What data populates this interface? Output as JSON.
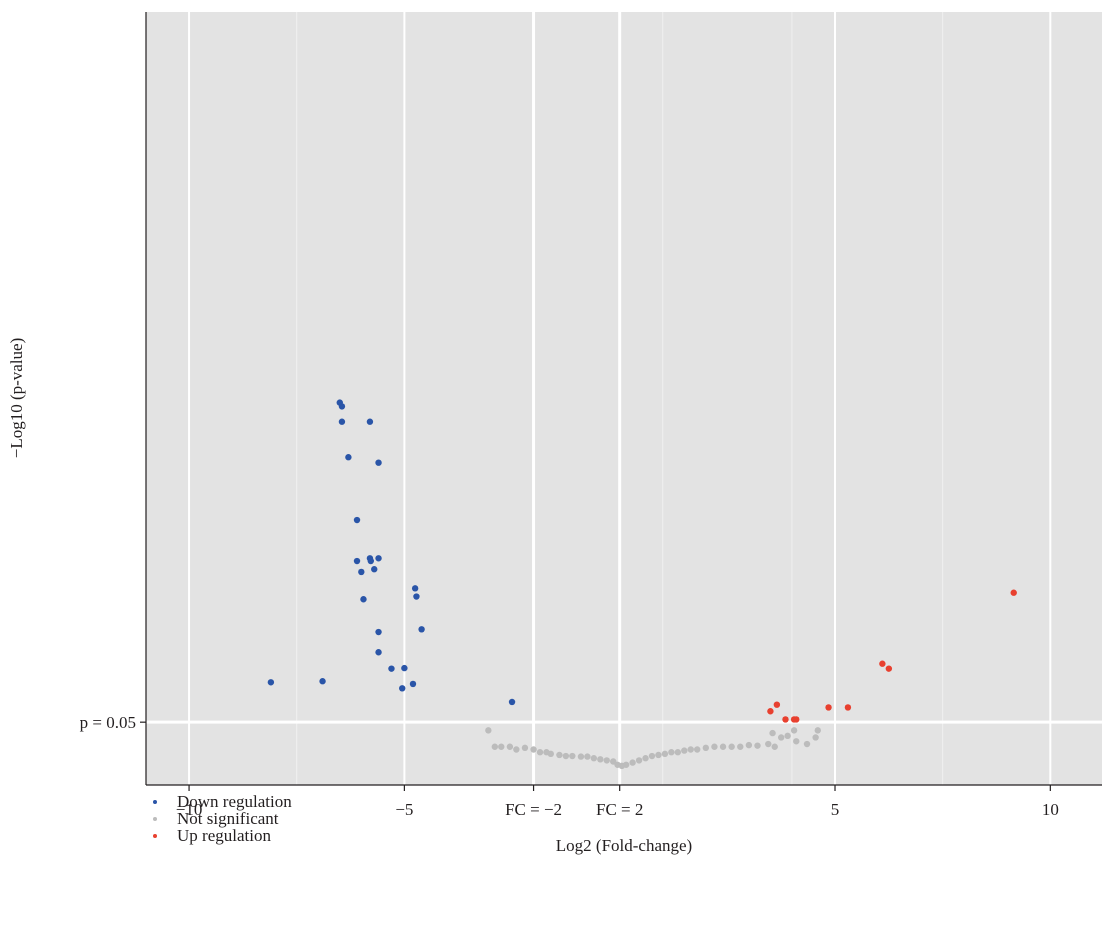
{
  "chart_data": {
    "type": "scatter",
    "title": "",
    "xlabel": "Log2 (Fold-change)",
    "ylabel": "−Log10 (p-value)",
    "xlim": [
      -11,
      11.2
    ],
    "ylim": [
      -1.15,
      13.0
    ],
    "x_ticks": [
      {
        "value": -10,
        "label": "−10"
      },
      {
        "value": -5,
        "label": "−5"
      },
      {
        "value": 5,
        "label": "5"
      },
      {
        "value": 10,
        "label": "10"
      }
    ],
    "x_minor_gridlines": [
      -7.5,
      -2,
      1,
      4,
      7.5
    ],
    "reference_lines": {
      "vertical": [
        {
          "value": -2,
          "label": "FC = −2"
        },
        {
          "value": 0,
          "label": "FC = 2"
        }
      ],
      "horizontal": [
        {
          "value": 0,
          "label": "p = 0.05"
        }
      ]
    },
    "grid": true,
    "legend_position": "bottom-left",
    "series": [
      {
        "name": "Down regulation",
        "color": "#2a55a8",
        "points": [
          [
            -6.5,
            5.85
          ],
          [
            -6.45,
            5.78
          ],
          [
            -6.45,
            5.5
          ],
          [
            -5.8,
            5.5
          ],
          [
            -6.3,
            4.85
          ],
          [
            -5.6,
            4.75
          ],
          [
            -6.1,
            3.7
          ],
          [
            -6.1,
            2.95
          ],
          [
            -5.8,
            3.0
          ],
          [
            -5.78,
            2.95
          ],
          [
            -5.6,
            3.0
          ],
          [
            -6.0,
            2.75
          ],
          [
            -5.7,
            2.8
          ],
          [
            -4.75,
            2.45
          ],
          [
            -4.72,
            2.3
          ],
          [
            -5.95,
            2.25
          ],
          [
            -4.6,
            1.7
          ],
          [
            -5.6,
            1.65
          ],
          [
            -5.6,
            1.28
          ],
          [
            -5.3,
            0.98
          ],
          [
            -5.0,
            0.99
          ],
          [
            -8.1,
            0.73
          ],
          [
            -6.9,
            0.75
          ],
          [
            -4.8,
            0.7
          ],
          [
            -5.05,
            0.62
          ],
          [
            -2.5,
            0.37
          ]
        ]
      },
      {
        "name": "Not significant",
        "color": "#bcbcbc",
        "points": [
          [
            -3.05,
            -0.15
          ],
          [
            -2.9,
            -0.45
          ],
          [
            -2.75,
            -0.45
          ],
          [
            -2.55,
            -0.45
          ],
          [
            -2.4,
            -0.5
          ],
          [
            -2.2,
            -0.47
          ],
          [
            -2.0,
            -0.5
          ],
          [
            -1.85,
            -0.55
          ],
          [
            -1.7,
            -0.55
          ],
          [
            -1.6,
            -0.58
          ],
          [
            -1.4,
            -0.6
          ],
          [
            -1.25,
            -0.62
          ],
          [
            -1.1,
            -0.62
          ],
          [
            -0.9,
            -0.63
          ],
          [
            -0.75,
            -0.63
          ],
          [
            -0.6,
            -0.66
          ],
          [
            -0.45,
            -0.68
          ],
          [
            -0.3,
            -0.7
          ],
          [
            -0.15,
            -0.72
          ],
          [
            -0.05,
            -0.78
          ],
          [
            0.05,
            -0.8
          ],
          [
            0.15,
            -0.78
          ],
          [
            0.3,
            -0.74
          ],
          [
            0.45,
            -0.7
          ],
          [
            0.6,
            -0.66
          ],
          [
            0.75,
            -0.62
          ],
          [
            0.9,
            -0.6
          ],
          [
            1.05,
            -0.58
          ],
          [
            1.2,
            -0.55
          ],
          [
            1.35,
            -0.55
          ],
          [
            1.5,
            -0.52
          ],
          [
            1.65,
            -0.5
          ],
          [
            1.8,
            -0.5
          ],
          [
            2.0,
            -0.47
          ],
          [
            2.2,
            -0.45
          ],
          [
            2.4,
            -0.45
          ],
          [
            2.6,
            -0.45
          ],
          [
            2.8,
            -0.45
          ],
          [
            3.0,
            -0.42
          ],
          [
            3.2,
            -0.43
          ],
          [
            3.45,
            -0.4
          ],
          [
            3.6,
            -0.45
          ],
          [
            3.55,
            -0.2
          ],
          [
            3.75,
            -0.28
          ],
          [
            3.9,
            -0.25
          ],
          [
            4.05,
            -0.15
          ],
          [
            4.1,
            -0.35
          ],
          [
            4.35,
            -0.4
          ],
          [
            4.55,
            -0.28
          ],
          [
            4.6,
            -0.15
          ]
        ]
      },
      {
        "name": "Up regulation",
        "color": "#e8402f",
        "points": [
          [
            3.5,
            0.2
          ],
          [
            3.65,
            0.32
          ],
          [
            3.85,
            0.05
          ],
          [
            4.05,
            0.05
          ],
          [
            4.1,
            0.05
          ],
          [
            4.85,
            0.27
          ],
          [
            5.3,
            0.27
          ],
          [
            6.1,
            1.07
          ],
          [
            6.25,
            0.98
          ],
          [
            9.15,
            2.37
          ]
        ]
      }
    ]
  }
}
